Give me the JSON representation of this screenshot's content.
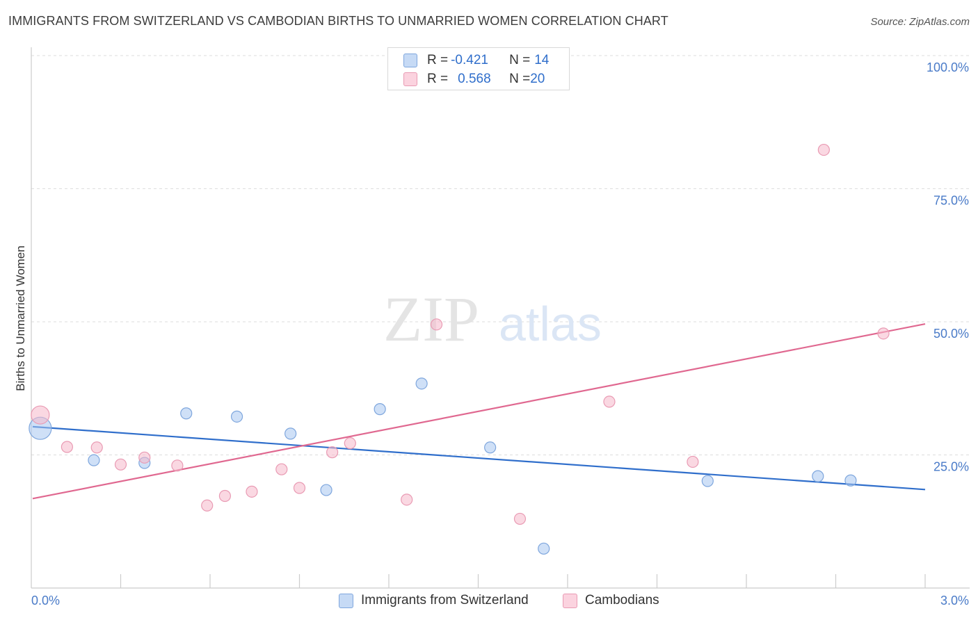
{
  "title": "IMMIGRANTS FROM SWITZERLAND VS CAMBODIAN BIRTHS TO UNMARRIED WOMEN CORRELATION CHART",
  "source": "Source: ZipAtlas.com",
  "watermark": {
    "zip": "ZIP",
    "atlas": "atlas"
  },
  "legend": {
    "rows": [
      {
        "r_label": "R = ",
        "r_value": "-0.421",
        "n_label": "N = ",
        "n_value": "14",
        "color": "#a8c6f0"
      },
      {
        "r_label": "R = ",
        "r_value": "0.568",
        "n_label": "N = ",
        "n_value": "20",
        "color": "#f5b8cb"
      }
    ]
  },
  "bottom_legend": [
    {
      "label": "Immigrants from Switzerland",
      "color": "#a8c6f0"
    },
    {
      "label": "Cambodians",
      "color": "#f5b8cb"
    }
  ],
  "chart_data": {
    "type": "scatter",
    "title": "IMMIGRANTS FROM SWITZERLAND VS CAMBODIAN BIRTHS TO UNMARRIED WOMEN CORRELATION CHART",
    "xlabel": "",
    "ylabel": "Births to Unmarried Women",
    "xlim": [
      0,
      3.0
    ],
    "ylim": [
      0,
      105
    ],
    "x_ticks": [
      0,
      3.0
    ],
    "x_tick_labels": [
      "0.0%",
      "3.0%"
    ],
    "y_ticks": [
      25,
      50,
      75,
      100
    ],
    "y_tick_labels": [
      "25.0%",
      "50.0%",
      "75.0%",
      "100.0%"
    ],
    "grid": true,
    "legend_position": "top-center",
    "series": [
      {
        "name": "Immigrants from Switzerland",
        "color": "#a8c6f0",
        "stroke": "#7ea6dd",
        "line_color": "#2f6ecb",
        "trend": [
          [
            0,
            30.3
          ],
          [
            3.0,
            18.5
          ]
        ],
        "points": [
          [
            0.03,
            30.0,
            3
          ],
          [
            0.21,
            24.0,
            1
          ],
          [
            0.38,
            23.5,
            1
          ],
          [
            0.52,
            32.8,
            1
          ],
          [
            0.69,
            32.2,
            1
          ],
          [
            0.87,
            29.0,
            1
          ],
          [
            0.99,
            18.4,
            1
          ],
          [
            1.17,
            33.6,
            1
          ],
          [
            1.31,
            38.4,
            1
          ],
          [
            1.54,
            26.4,
            1
          ],
          [
            1.72,
            7.4,
            1
          ],
          [
            2.27,
            20.1,
            1
          ],
          [
            2.64,
            21.0,
            1
          ],
          [
            2.75,
            20.2,
            1
          ]
        ]
      },
      {
        "name": "Cambodians",
        "color": "#f5b8cb",
        "stroke": "#e99ab3",
        "line_color": "#e06890",
        "trend": [
          [
            0,
            16.8
          ],
          [
            3.0,
            49.6
          ]
        ],
        "points": [
          [
            0.03,
            32.5,
            2
          ],
          [
            0.12,
            26.5,
            1
          ],
          [
            0.22,
            26.4,
            1
          ],
          [
            0.3,
            23.2,
            1
          ],
          [
            0.38,
            24.5,
            1
          ],
          [
            0.49,
            23.0,
            1
          ],
          [
            0.59,
            15.5,
            1
          ],
          [
            0.65,
            17.3,
            1
          ],
          [
            0.74,
            18.1,
            1
          ],
          [
            0.84,
            22.3,
            1
          ],
          [
            0.9,
            18.8,
            1
          ],
          [
            1.01,
            25.5,
            1
          ],
          [
            1.07,
            27.2,
            1
          ],
          [
            1.26,
            16.6,
            1
          ],
          [
            1.36,
            49.5,
            1
          ],
          [
            1.64,
            13.0,
            1
          ],
          [
            1.94,
            35.0,
            1
          ],
          [
            2.22,
            23.7,
            1
          ],
          [
            2.66,
            82.3,
            1
          ],
          [
            2.86,
            47.8,
            1
          ]
        ]
      }
    ]
  }
}
